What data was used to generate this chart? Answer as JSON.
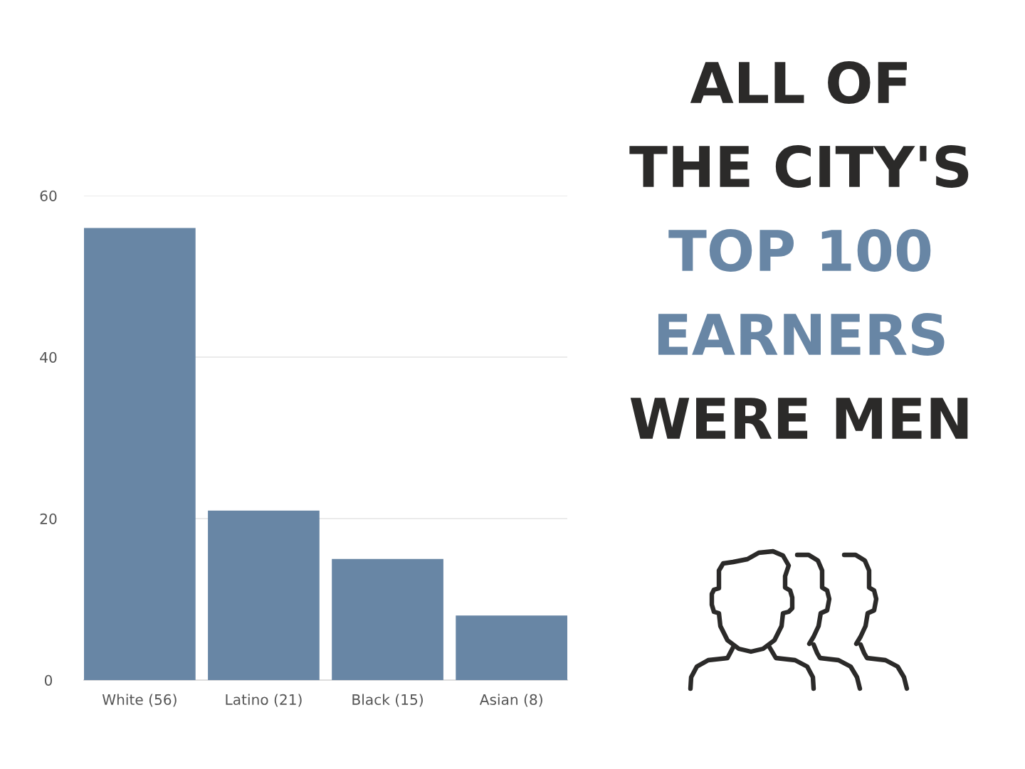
{
  "chart_data": {
    "type": "bar",
    "title": "ALL OF\nTHE CITY'S\nTOP 100\nEARNERS\nWERE MEN",
    "categories": [
      "White (56)",
      "Latino (21)",
      "Black (15)",
      "Asian (8)"
    ],
    "values": [
      56,
      21,
      15,
      8
    ],
    "color": "#6886a5",
    "ylim": [
      0,
      60
    ],
    "yticks": [
      0,
      20,
      40,
      60
    ],
    "grid": "y"
  }
}
